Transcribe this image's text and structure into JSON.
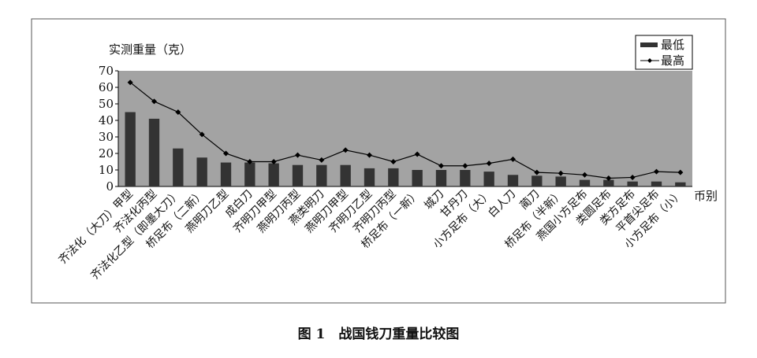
{
  "chart_data": {
    "type": "bar_line",
    "y_label": "实测重量（克）",
    "x_label": "币别",
    "caption": "图 1　战国钱刀重量比较图",
    "categories": [
      "齐法化（大刀）甲型",
      "齐法化丙型",
      "齐法化乙型（即墨大刀）",
      "桥足布（二新）",
      "燕明刀乙型",
      "成白刀",
      "齐明刀甲型",
      "燕明刀丙型",
      "燕类明刀",
      "燕明刀甲型",
      "齐明刀乙型",
      "齐明刀丙型",
      "桥足布（一新）",
      "城刀",
      "甘丹刀",
      "小方足布（大）",
      "白人刀",
      "蔺刀",
      "桥足布（半新）",
      "燕国小方足布",
      "类圆足布",
      "类方足布",
      "平首尖足布",
      "小方足布（小）"
    ],
    "series": [
      {
        "name": "最低",
        "type": "bar",
        "color": "#333333",
        "values": [
          45,
          41,
          23,
          17.5,
          14.5,
          14.5,
          14,
          13,
          13,
          13,
          11,
          11,
          10,
          10,
          10,
          9,
          7,
          6.5,
          6,
          4,
          4,
          3,
          3,
          2.5
        ]
      },
      {
        "name": "最高",
        "type": "line",
        "color": "#000000",
        "values": [
          63,
          51.5,
          45,
          31.5,
          20,
          15,
          15,
          19,
          16,
          22,
          19,
          15,
          19.5,
          12.5,
          12.5,
          14,
          16.5,
          8.5,
          8,
          7,
          5,
          5.5,
          9,
          8.5
        ]
      }
    ],
    "ylim": [
      0,
      70
    ],
    "yticks": [
      0,
      10,
      20,
      30,
      40,
      50,
      60,
      70
    ]
  }
}
